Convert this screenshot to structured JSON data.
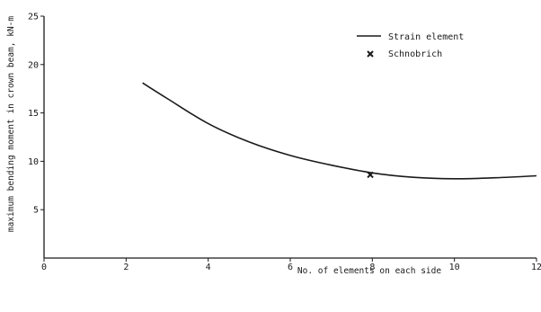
{
  "chart_data": {
    "type": "line",
    "xlabel": "No. of elements on each side",
    "ylabel": "maximum bending moment in crown beam, kN-m",
    "xlim": [
      0,
      12
    ],
    "ylim": [
      0,
      25
    ],
    "x_ticks": [
      "0",
      "2",
      "4",
      "6",
      "8",
      "10",
      "12"
    ],
    "y_ticks": [
      "5",
      "10",
      "15",
      "20",
      "25"
    ],
    "grid": false,
    "legend_position": "top-right",
    "series": [
      {
        "name": "Strain element",
        "style": "line",
        "x": [
          2.4,
          3.0,
          4.0,
          5.0,
          6.0,
          7.0,
          8.0,
          9.0,
          10.0,
          11.0,
          12.0
        ],
        "y": [
          18.1,
          16.5,
          13.9,
          12.0,
          10.6,
          9.6,
          8.8,
          8.35,
          8.2,
          8.3,
          8.5
        ]
      },
      {
        "name": "Schnobrich",
        "style": "marker",
        "x": [
          7.95
        ],
        "y": [
          8.6
        ]
      }
    ]
  }
}
